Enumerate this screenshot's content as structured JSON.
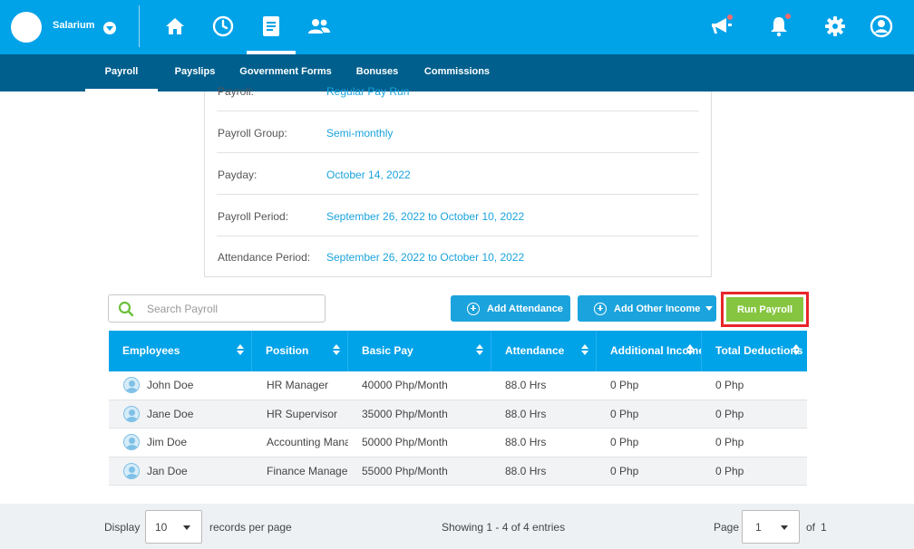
{
  "header": {
    "company": "Salarium",
    "nav_icons": [
      "home-icon",
      "clock-icon",
      "document-icon",
      "people-icon"
    ],
    "right_icons": [
      "megaphone-icon",
      "bell-icon",
      "gear-icon",
      "user-icon"
    ]
  },
  "subnav": {
    "tabs": [
      {
        "label": "Payroll",
        "active": true
      },
      {
        "label": "Payslips",
        "active": false
      },
      {
        "label": "Government Forms",
        "active": false
      },
      {
        "label": "Bonuses",
        "active": false
      },
      {
        "label": "Commissions",
        "active": false
      }
    ]
  },
  "details": [
    {
      "label": "Payroll:",
      "value": "Regular Pay Run"
    },
    {
      "label": "Payroll Group:",
      "value": "Semi-monthly"
    },
    {
      "label": "Payday:",
      "value": "October 14, 2022"
    },
    {
      "label": "Payroll Period:",
      "value": "September 26, 2022 to October 10, 2022"
    },
    {
      "label": "Attendance Period:",
      "value": "September 26, 2022 to October 10, 2022"
    }
  ],
  "toolbar": {
    "search_placeholder": "Search Payroll",
    "add_attendance": "Add Attendance",
    "add_other_income": "Add Other Income",
    "run_payroll": "Run Payroll"
  },
  "table": {
    "columns": [
      "Employees",
      "Position",
      "Basic Pay",
      "Attendance",
      "Additional Income",
      "Total Deductions"
    ],
    "rows": [
      [
        "John Doe",
        "HR Manager",
        "40000 Php/Month",
        "88.0 Hrs",
        "0 Php",
        "0 Php"
      ],
      [
        "Jane Doe",
        "HR Supervisor",
        "35000 Php/Month",
        "88.0 Hrs",
        "0 Php",
        "0 Php"
      ],
      [
        "Jim Doe",
        "Accounting Manager",
        "50000 Php/Month",
        "88.0 Hrs",
        "0 Php",
        "0 Php"
      ],
      [
        "Jan Doe",
        "Finance Manager",
        "55000 Php/Month",
        "88.0 Hrs",
        "0 Php",
        "0 Php"
      ]
    ]
  },
  "footer": {
    "display_label": "Display",
    "per_page": "10",
    "records_label": "records per page",
    "showing": "Showing 1 - 4 of 4 entries",
    "page_label": "Page",
    "page_value": "1",
    "of_label": "of",
    "total_pages": "1"
  },
  "colors": {
    "primary": "#00a2e8",
    "subnav": "#005f8d",
    "run_button": "#86c540",
    "highlight": "#e8252a",
    "link": "#1ba3dd"
  }
}
